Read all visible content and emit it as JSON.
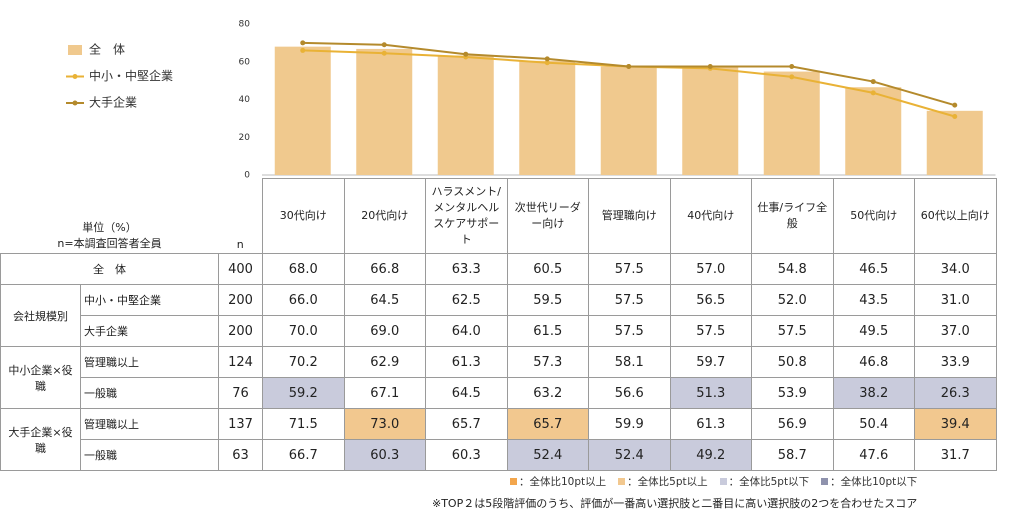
{
  "chart_data": {
    "type": "combo",
    "categories": [
      "30代向け",
      "20代向け",
      "ハラスメント/メンタルヘルスケアサポート",
      "次世代リーダー向け",
      "管理職向け",
      "40代向け",
      "仕事/ライフ全般",
      "50代向け",
      "60代以上向け"
    ],
    "series": [
      {
        "name": "全　体",
        "type": "bar",
        "color": "#f0c98e",
        "values": [
          68,
          66.8,
          63.3,
          60.5,
          57.5,
          57,
          54.8,
          46.5,
          34
        ]
      },
      {
        "name": "中小・中堅企業",
        "type": "line",
        "color": "#e9b236",
        "values": [
          66,
          64.5,
          62.5,
          59.5,
          57.5,
          56.5,
          52,
          43.5,
          31
        ]
      },
      {
        "name": "大手企業",
        "type": "line",
        "color": "#b48a2c",
        "values": [
          70,
          69,
          64,
          61.5,
          57.5,
          57.5,
          57.5,
          49.5,
          37
        ]
      }
    ],
    "ylim": [
      0,
      80
    ],
    "yticks": [
      0,
      20,
      40,
      60,
      80
    ],
    "grid": false
  },
  "table": {
    "unit_label": "単位（%）",
    "n_description": "n=本調査回答者全員",
    "n_header": "n",
    "sections": [
      {
        "title": "全　体",
        "rows": [
          {
            "n": 400,
            "values": [
              "68.0",
              "66.8",
              "63.3",
              "60.5",
              "57.5",
              "57.0",
              "54.8",
              "46.5",
              "34.0"
            ]
          }
        ]
      },
      {
        "title": "会社規模別",
        "rows": [
          {
            "label": "中小・中堅企業",
            "n": 200,
            "values": [
              "66.0",
              "64.5",
              "62.5",
              "59.5",
              "57.5",
              "56.5",
              "52.0",
              "43.5",
              "31.0"
            ]
          },
          {
            "label": "大手企業",
            "n": 200,
            "values": [
              "70.0",
              "69.0",
              "64.0",
              "61.5",
              "57.5",
              "57.5",
              "57.5",
              "49.5",
              "37.0"
            ]
          }
        ]
      },
      {
        "title": "中小企業×役職",
        "rows": [
          {
            "label": "管理職以上",
            "n": 124,
            "values": [
              "70.2",
              "62.9",
              "61.3",
              "57.3",
              "58.1",
              "59.7",
              "50.8",
              "46.8",
              "33.9"
            ]
          },
          {
            "label": "一般職",
            "n": 76,
            "values": [
              "59.2",
              "67.1",
              "64.5",
              "63.2",
              "56.6",
              "51.3",
              "53.9",
              "38.2",
              "26.3"
            ],
            "cell_colors": [
              "#c9cbdc",
              null,
              null,
              null,
              null,
              "#c9cbdc",
              null,
              "#c9cbdc",
              "#c9cbdc"
            ]
          }
        ]
      },
      {
        "title": "大手企業×役職",
        "rows": [
          {
            "label": "管理職以上",
            "n": 137,
            "values": [
              "71.5",
              "73.0",
              "65.7",
              "65.7",
              "59.9",
              "61.3",
              "56.9",
              "50.4",
              "39.4"
            ],
            "cell_colors": [
              null,
              "#f2c88f",
              null,
              "#f2c88f",
              null,
              null,
              null,
              null,
              "#f2c88f"
            ]
          },
          {
            "label": "一般職",
            "n": 63,
            "values": [
              "66.7",
              "60.3",
              "60.3",
              "52.4",
              "52.4",
              "49.2",
              "58.7",
              "47.6",
              "31.7"
            ],
            "cell_colors": [
              null,
              "#c9cbdc",
              null,
              "#c9cbdc",
              "#c9cbdc",
              "#c9cbdc",
              null,
              null,
              null
            ]
          }
        ]
      }
    ]
  },
  "color_legend": [
    {
      "label": "：全体比10pt以上",
      "color": "#f3a64c"
    },
    {
      "label": "：全体比5pt以上",
      "color": "#f2c88f"
    },
    {
      "label": "：全体比5pt以下",
      "color": "#c9cbdc"
    },
    {
      "label": "：全体比10pt以下",
      "color": "#8f92ad"
    }
  ],
  "footnote": "※TOP２は5段階評価のうち、評価が一番高い選択肢と二番目に高い選択肢の2つを合わせたスコア"
}
